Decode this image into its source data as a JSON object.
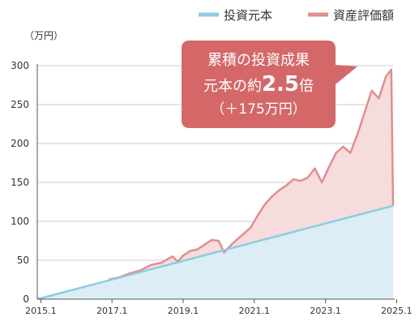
{
  "chart_data": {
    "type": "area",
    "title": "",
    "xlabel": "",
    "ylabel": "（万円）",
    "ylim": [
      0,
      300
    ],
    "yticks": [
      0,
      50,
      100,
      150,
      200,
      250,
      300
    ],
    "xlim": [
      2015.0,
      2025.0
    ],
    "xticks": [
      "2015.1",
      "2017.1",
      "2019.1",
      "2021.1",
      "2023.1",
      "2025.1"
    ],
    "grid": true,
    "legend_position": "top-right",
    "colors": {
      "principal_line": "#8ccde0",
      "principal_fill": "#dcedf5",
      "value_line": "#df8f8f",
      "value_fill": "#f6dcdc",
      "callout_bg": "#d46868",
      "grid": "#cccccc",
      "axis": "#555555"
    },
    "series": [
      {
        "name": "投資元本",
        "x": [
          2015.0,
          2025.0
        ],
        "values": [
          0,
          120
        ]
      },
      {
        "name": "資産評価額",
        "x": [
          2017.0,
          2017.3,
          2017.6,
          2017.9,
          2018.2,
          2018.5,
          2018.8,
          2018.95,
          2019.1,
          2019.3,
          2019.5,
          2019.7,
          2019.9,
          2020.1,
          2020.25,
          2020.5,
          2020.75,
          2021.0,
          2021.2,
          2021.4,
          2021.6,
          2021.8,
          2022.0,
          2022.2,
          2022.4,
          2022.6,
          2022.8,
          2023.0,
          2023.2,
          2023.4,
          2023.6,
          2023.8,
          2024.0,
          2024.2,
          2024.4,
          2024.6,
          2024.8,
          2024.95,
          2025.0
        ],
        "values": [
          25,
          28,
          33,
          37,
          44,
          47,
          55,
          48,
          56,
          62,
          64,
          70,
          76,
          75,
          60,
          72,
          82,
          92,
          108,
          122,
          132,
          140,
          146,
          154,
          152,
          156,
          168,
          150,
          170,
          188,
          196,
          188,
          212,
          240,
          268,
          258,
          286,
          295,
          120
        ]
      }
    ],
    "annotation": {
      "line1": "累積の投資成果",
      "line2_prefix": "元本の約",
      "line2_value": "2.5",
      "line2_suffix": "倍",
      "line3": "（＋175万円）"
    }
  }
}
